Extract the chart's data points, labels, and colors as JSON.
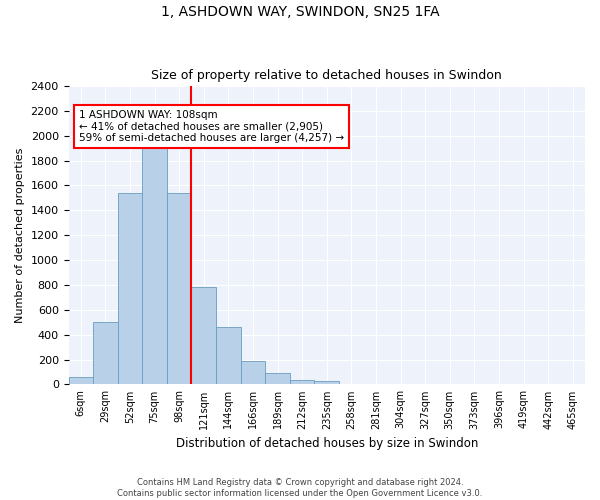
{
  "title": "1, ASHDOWN WAY, SWINDON, SN25 1FA",
  "subtitle": "Size of property relative to detached houses in Swindon",
  "xlabel": "Distribution of detached houses by size in Swindon",
  "ylabel": "Number of detached properties",
  "footer1": "Contains HM Land Registry data © Crown copyright and database right 2024.",
  "footer2": "Contains public sector information licensed under the Open Government Licence v3.0.",
  "annotation_line1": "1 ASHDOWN WAY: 108sqm",
  "annotation_line2": "← 41% of detached houses are smaller (2,905)",
  "annotation_line3": "59% of semi-detached houses are larger (4,257) →",
  "property_size": 108,
  "bar_color": "#b8d0e8",
  "bar_edge_color": "#6a9cc0",
  "vline_color": "red",
  "categories": [
    "6sqm",
    "29sqm",
    "52sqm",
    "75sqm",
    "98sqm",
    "121sqm",
    "144sqm",
    "166sqm",
    "189sqm",
    "212sqm",
    "235sqm",
    "258sqm",
    "281sqm",
    "304sqm",
    "327sqm",
    "350sqm",
    "373sqm",
    "396sqm",
    "419sqm",
    "442sqm",
    "465sqm"
  ],
  "values": [
    60,
    500,
    1540,
    1930,
    1540,
    780,
    460,
    185,
    90,
    35,
    25,
    0,
    0,
    0,
    0,
    0,
    0,
    0,
    0,
    0,
    0
  ],
  "n_bins": 21,
  "ylim": [
    0,
    2400
  ],
  "yticks": [
    0,
    200,
    400,
    600,
    800,
    1000,
    1200,
    1400,
    1600,
    1800,
    2000,
    2200,
    2400
  ],
  "background_color": "#eef2fa"
}
